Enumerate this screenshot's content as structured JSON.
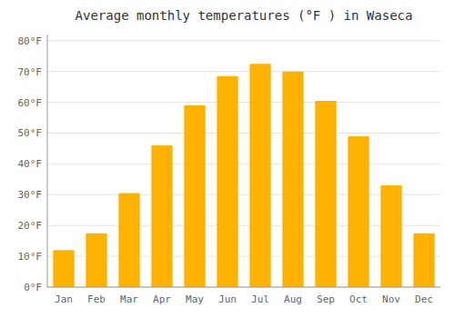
{
  "chart_data": {
    "type": "bar",
    "title": "Average monthly temperatures (°F ) in Waseca",
    "categories": [
      "Jan",
      "Feb",
      "Mar",
      "Apr",
      "May",
      "Jun",
      "Jul",
      "Aug",
      "Sep",
      "Oct",
      "Nov",
      "Dec"
    ],
    "values": [
      12,
      17.5,
      30.5,
      46,
      59,
      68.5,
      72.5,
      70,
      60.5,
      49,
      33,
      17.5
    ],
    "color": "#FFB300",
    "ylim": [
      0,
      82
    ],
    "yticks": [
      {
        "value": 0,
        "label": "0°F"
      },
      {
        "value": 10,
        "label": "10°F"
      },
      {
        "value": 20,
        "label": "20°F"
      },
      {
        "value": 30,
        "label": "30°F"
      },
      {
        "value": 40,
        "label": "40°F"
      },
      {
        "value": 50,
        "label": "50°F"
      },
      {
        "value": 60,
        "label": "60°F"
      },
      {
        "value": 70,
        "label": "70°F"
      },
      {
        "value": 80,
        "label": "80°F"
      }
    ],
    "grid": true
  }
}
